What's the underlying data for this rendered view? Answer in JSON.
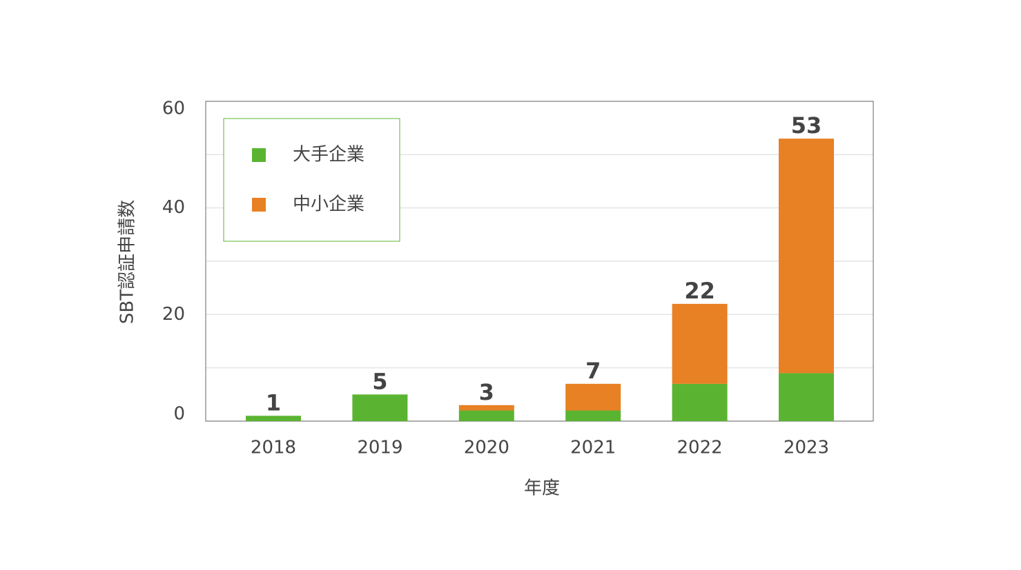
{
  "chart_data": {
    "type": "stacked_bar",
    "xlabel": "年度",
    "ylabel": "SBT認証申請数",
    "categories": [
      "2018",
      "2019",
      "2020",
      "2021",
      "2022",
      "2023"
    ],
    "series": [
      {
        "name": "大手企業",
        "color": "#5bb431",
        "values": [
          1,
          5,
          2,
          2,
          7,
          9
        ]
      },
      {
        "name": "中小企業",
        "color": "#e88024",
        "values": [
          0,
          0,
          1,
          5,
          15,
          44
        ]
      }
    ],
    "totals": [
      1,
      5,
      3,
      7,
      22,
      53
    ],
    "ylim": [
      0,
      60
    ],
    "yticks": [
      0,
      20,
      40,
      60
    ],
    "minor_yticks": [
      10,
      30,
      50
    ],
    "grid": true,
    "legend": "upper left"
  }
}
